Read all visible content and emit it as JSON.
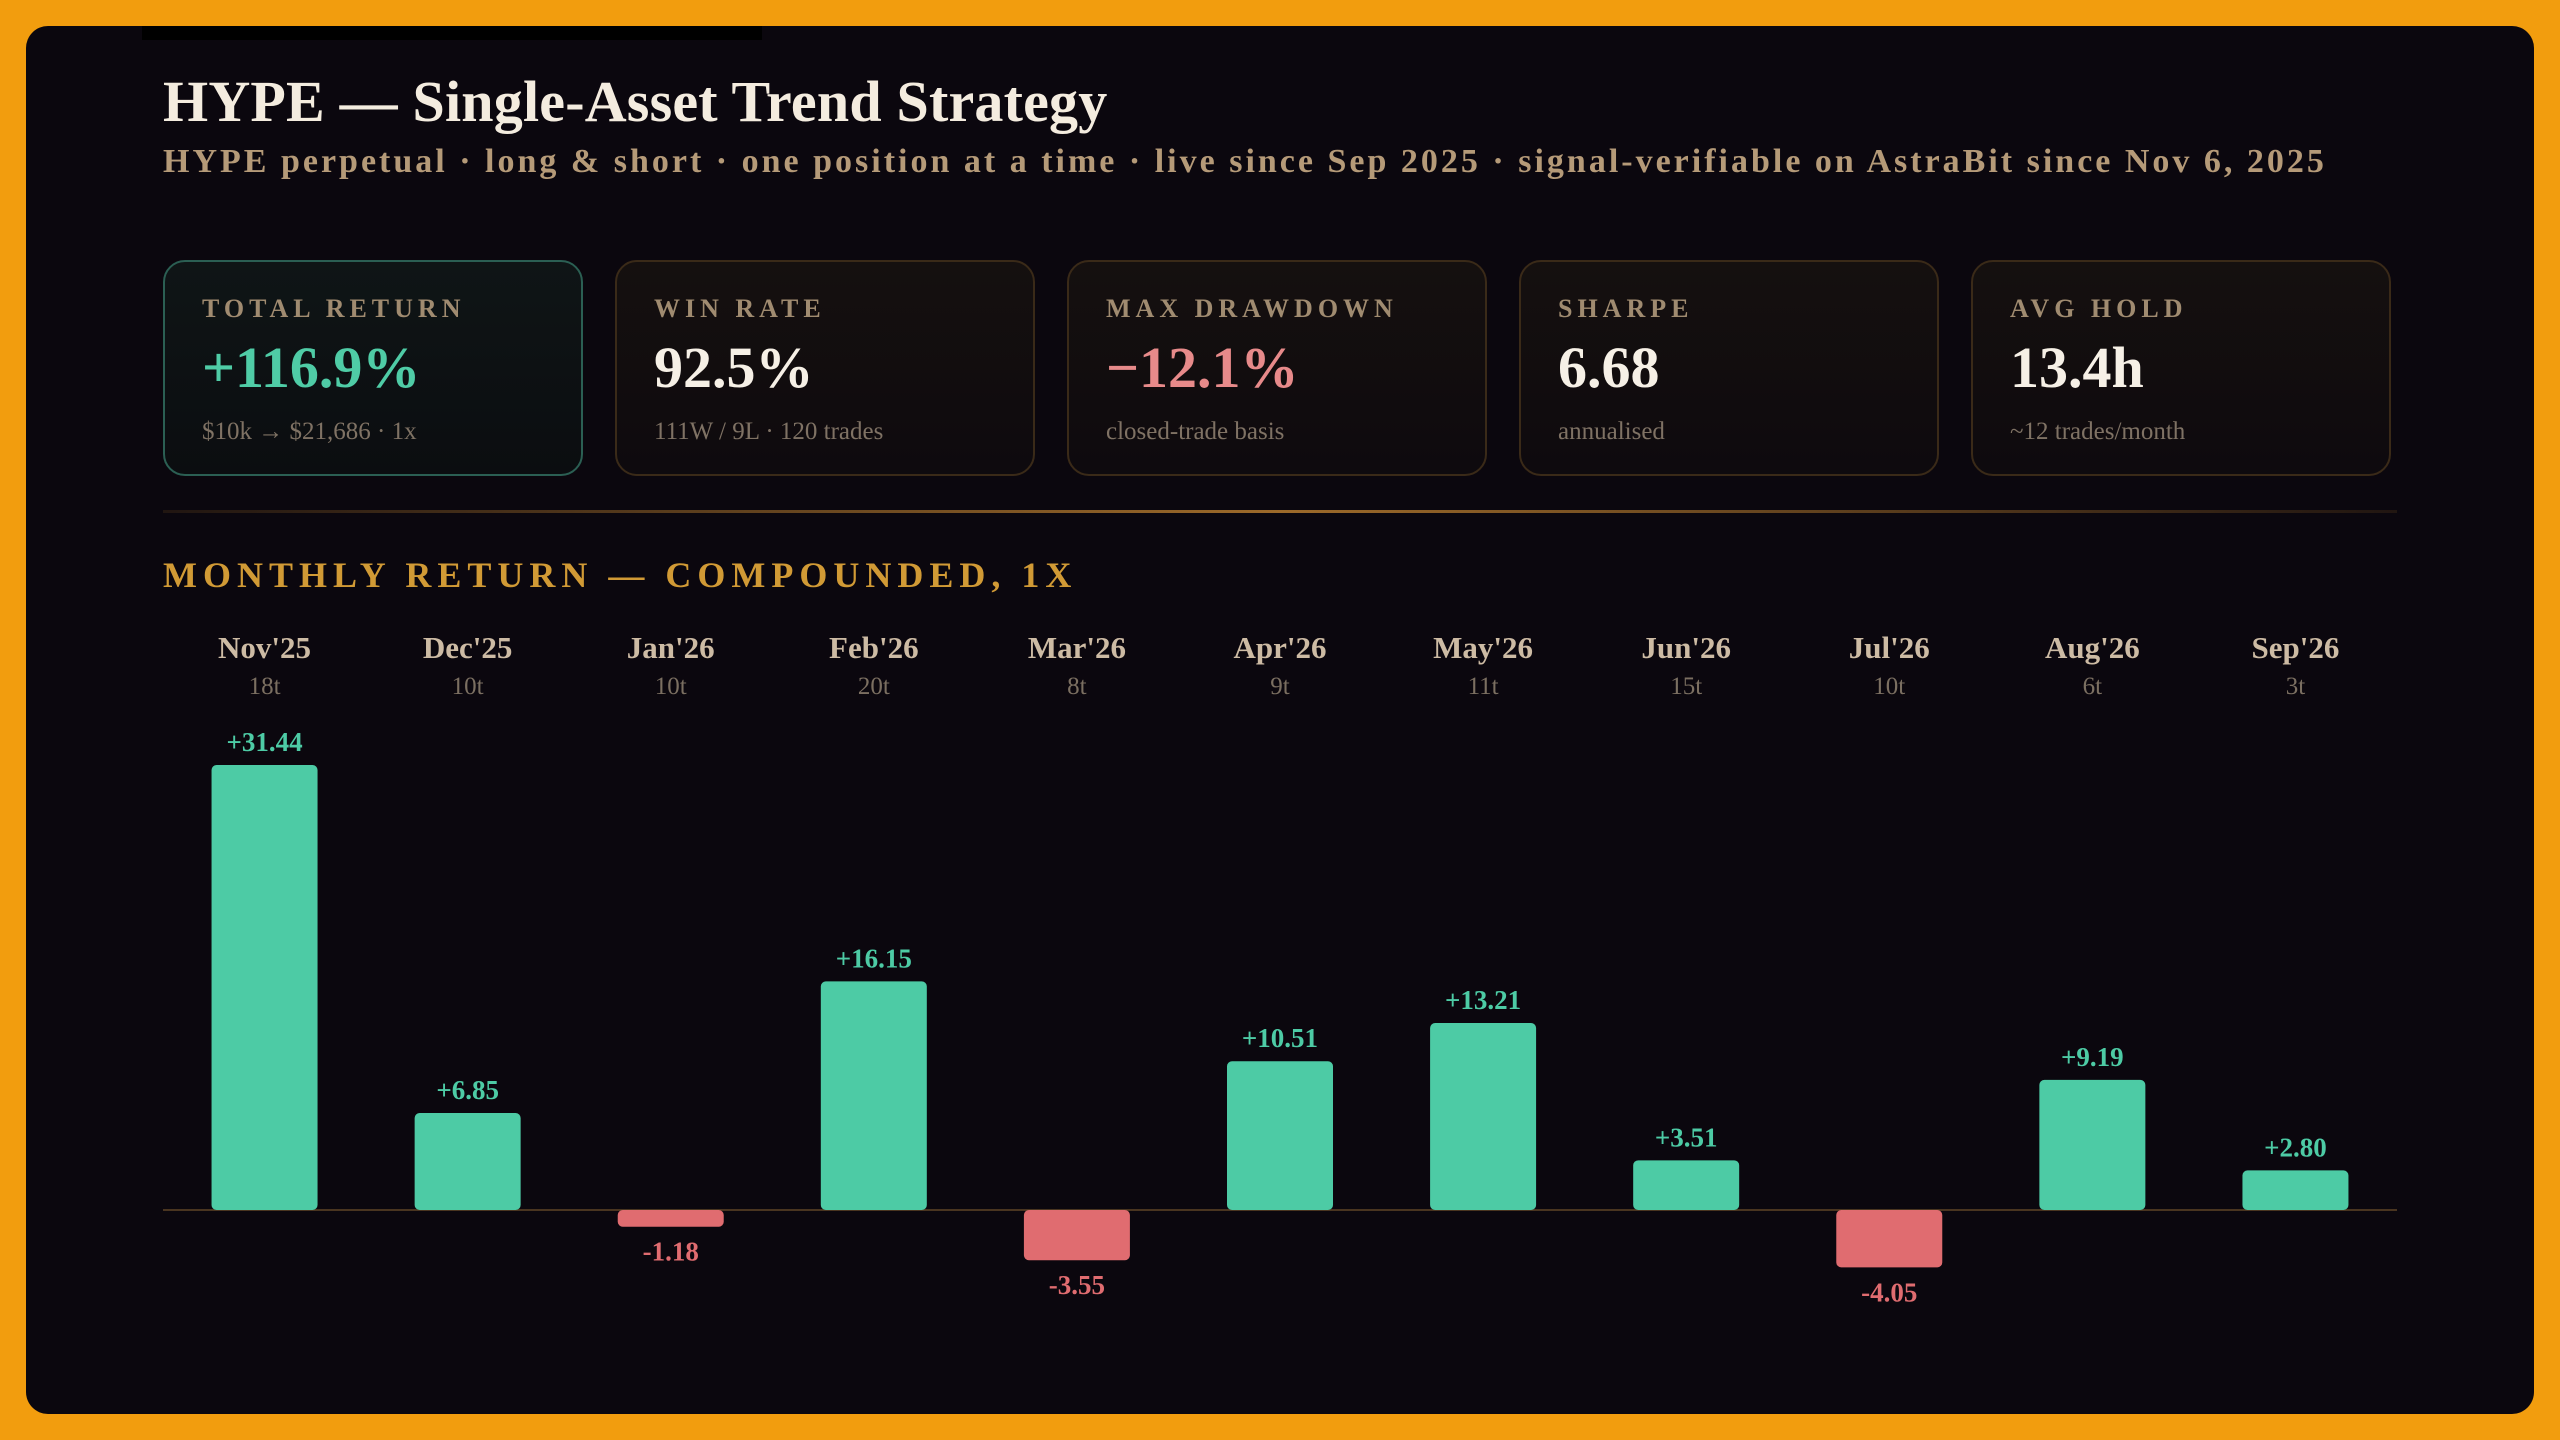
{
  "header": {
    "title": "HYPE — Single-Asset Trend Strategy",
    "subtitle": "HYPE perpetual · long & short · one position at a time · live since Sep 2025 · signal-verifiable on AstraBit since Nov 6, 2025"
  },
  "stats": [
    {
      "label": "TOTAL RETURN",
      "value": "+116.9%",
      "sub": "$10k → $21,686 · 1x",
      "color": "#4fcca6"
    },
    {
      "label": "WIN RATE",
      "value": "92.5%",
      "sub": "111W / 9L · 120 trades",
      "color": "#f6f0e6"
    },
    {
      "label": "MAX DRAWDOWN",
      "value": "−12.1%",
      "sub": "closed-trade basis",
      "color": "#e78a8a"
    },
    {
      "label": "SHARPE",
      "value": "6.68",
      "sub": "annualised",
      "color": "#f6f0e6"
    },
    {
      "label": "AVG HOLD",
      "value": "13.4h",
      "sub": "~12 trades/month",
      "color": "#f6f0e6"
    }
  ],
  "section_title": "MONTHLY RETURN — COMPOUNDED, 1X",
  "chart_data": {
    "type": "bar",
    "categories": [
      "Nov'25",
      "Dec'25",
      "Jan'26",
      "Feb'26",
      "Mar'26",
      "Apr'26",
      "May'26",
      "Jun'26",
      "Jul'26",
      "Aug'26",
      "Sep'26"
    ],
    "trade_counts": [
      "18t",
      "10t",
      "10t",
      "20t",
      "8t",
      "9t",
      "11t",
      "15t",
      "10t",
      "6t",
      "3t"
    ],
    "values": [
      31.44,
      6.85,
      -1.18,
      16.15,
      -3.55,
      10.51,
      13.21,
      3.51,
      -4.05,
      9.19,
      2.8
    ],
    "value_labels": [
      "+31.44",
      "+6.85",
      "-1.18",
      "+16.15",
      "-3.55",
      "+10.51",
      "+13.21",
      "+3.51",
      "-4.05",
      "+9.19",
      "+2.80"
    ],
    "positive_color": "#4dcba5",
    "negative_color": "#e06c70",
    "title": "MONTHLY RETURN — COMPOUNDED, 1X",
    "xlabel": "",
    "ylabel": ""
  }
}
